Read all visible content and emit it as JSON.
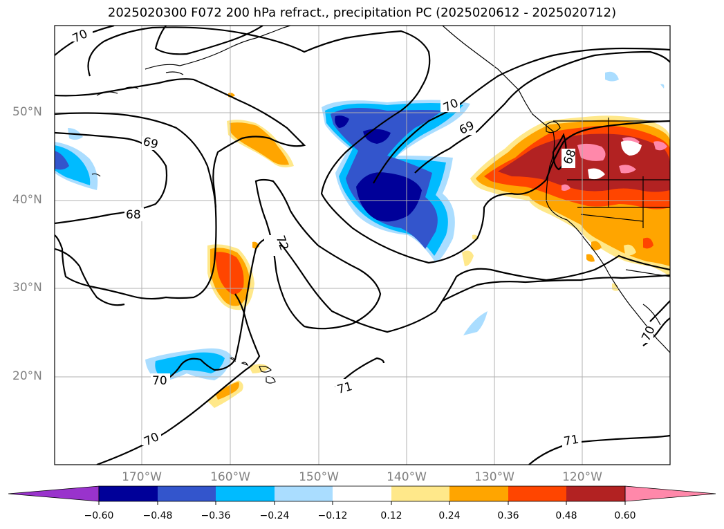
{
  "title": "2025020300 F072 200 hPa refract., precipitation PC (2025020612 - 2025020712)",
  "map": {
    "lat_labels": [
      "50°N",
      "40°N",
      "30°N",
      "20°N"
    ],
    "lon_labels": [
      "170°W",
      "160°W",
      "150°W",
      "140°W",
      "130°W",
      "120°W"
    ],
    "contour_labels": [
      "70",
      "69",
      "68",
      "72",
      "70",
      "70",
      "70",
      "69",
      "68",
      "71",
      "71",
      "70"
    ],
    "colors": {
      "land_outline": "#000000",
      "grid": "#b0b0b0",
      "contour": "#000000"
    }
  },
  "colorbar": {
    "ticks": [
      "−0.60",
      "−0.48",
      "−0.36",
      "−0.24",
      "−0.12",
      "0.12",
      "0.24",
      "0.36",
      "0.48",
      "0.60"
    ],
    "colors": [
      "#9933cc",
      "#000099",
      "#3355cc",
      "#00bbff",
      "#aaddff",
      "#ffffff",
      "#ffe88a",
      "#ffa500",
      "#ff4500",
      "#b22222",
      "#ff88aa"
    ]
  }
}
